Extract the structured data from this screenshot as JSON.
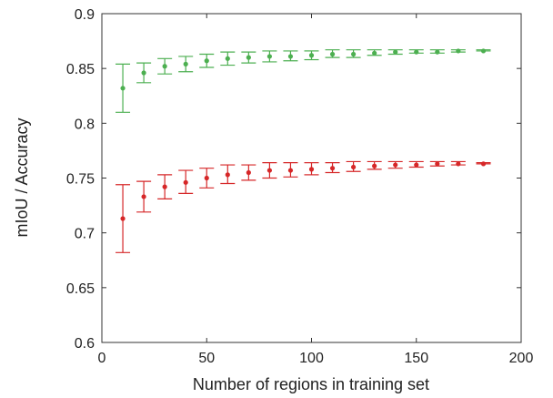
{
  "chart_data": {
    "type": "scatter",
    "title": "",
    "xlabel": "Number of regions in training set",
    "ylabel": "mIoU / Accuracy",
    "xlim": [
      0,
      200
    ],
    "ylim": [
      0.6,
      0.9
    ],
    "xticks": [
      0,
      50,
      100,
      150,
      200
    ],
    "yticks": [
      0.6,
      0.65,
      0.7,
      0.75,
      0.8,
      0.85,
      0.9
    ],
    "xtick_labels": [
      "0",
      "50",
      "100",
      "150",
      "200"
    ],
    "ytick_labels": [
      "0.6",
      "0.65",
      "0.7",
      "0.75",
      "0.8",
      "0.85",
      "0.9"
    ],
    "grid": false,
    "legend": "none",
    "x": [
      10,
      20,
      30,
      40,
      50,
      60,
      70,
      80,
      90,
      100,
      110,
      120,
      130,
      140,
      150,
      160,
      170,
      182
    ],
    "series": [
      {
        "color": "#4caf50",
        "values": [
          0.832,
          0.846,
          0.852,
          0.854,
          0.857,
          0.859,
          0.86,
          0.861,
          0.861,
          0.862,
          0.863,
          0.863,
          0.864,
          0.865,
          0.865,
          0.865,
          0.866,
          0.866
        ],
        "err_low": [
          0.81,
          0.837,
          0.845,
          0.847,
          0.851,
          0.853,
          0.855,
          0.856,
          0.857,
          0.858,
          0.86,
          0.86,
          0.862,
          0.863,
          0.864,
          0.864,
          0.865,
          0.866
        ],
        "err_high": [
          0.854,
          0.855,
          0.859,
          0.861,
          0.863,
          0.865,
          0.865,
          0.866,
          0.866,
          0.866,
          0.867,
          0.867,
          0.867,
          0.867,
          0.867,
          0.867,
          0.867,
          0.867
        ]
      },
      {
        "color": "#d62728",
        "values": [
          0.713,
          0.733,
          0.742,
          0.746,
          0.75,
          0.753,
          0.755,
          0.757,
          0.757,
          0.758,
          0.759,
          0.76,
          0.761,
          0.762,
          0.762,
          0.763,
          0.763,
          0.763
        ],
        "err_low": [
          0.682,
          0.719,
          0.731,
          0.736,
          0.741,
          0.745,
          0.748,
          0.75,
          0.751,
          0.753,
          0.755,
          0.756,
          0.758,
          0.759,
          0.76,
          0.761,
          0.762,
          0.763
        ],
        "err_high": [
          0.744,
          0.747,
          0.753,
          0.757,
          0.759,
          0.762,
          0.762,
          0.764,
          0.764,
          0.764,
          0.764,
          0.765,
          0.765,
          0.765,
          0.765,
          0.765,
          0.765,
          0.764
        ]
      }
    ]
  }
}
